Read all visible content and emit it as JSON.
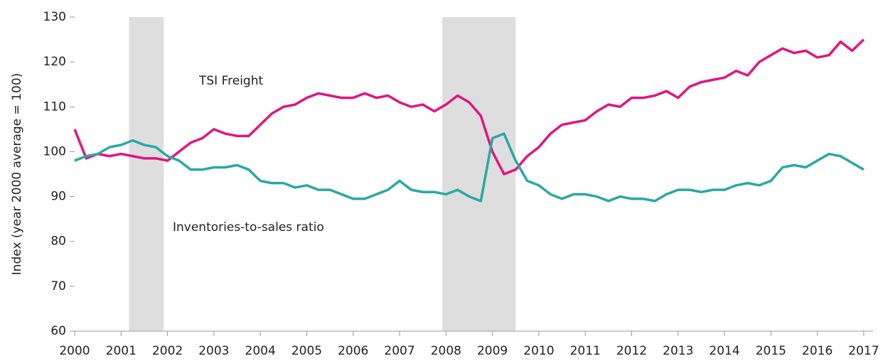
{
  "chart_data": {
    "type": "line",
    "y_label": "Index (year 2000 average = 100)",
    "x": [
      2000,
      2000.25,
      2000.5,
      2000.75,
      2001,
      2001.25,
      2001.5,
      2001.75,
      2002,
      2002.25,
      2002.5,
      2002.75,
      2003,
      2003.25,
      2003.5,
      2003.75,
      2004,
      2004.25,
      2004.5,
      2004.75,
      2005,
      2005.25,
      2005.5,
      2005.75,
      2006,
      2006.25,
      2006.5,
      2006.75,
      2007,
      2007.25,
      2007.5,
      2007.75,
      2008,
      2008.25,
      2008.5,
      2008.75,
      2009,
      2009.25,
      2009.5,
      2009.75,
      2010,
      2010.25,
      2010.5,
      2010.75,
      2011,
      2011.25,
      2011.5,
      2011.75,
      2012,
      2012.25,
      2012.5,
      2012.75,
      2013,
      2013.25,
      2013.5,
      2013.75,
      2014,
      2014.25,
      2014.5,
      2014.75,
      2015,
      2015.25,
      2015.5,
      2015.75,
      2016,
      2016.25,
      2016.5,
      2016.75,
      2017
    ],
    "series": [
      {
        "name": "TSI Freight",
        "color": "#e0157f",
        "values": [
          105,
          98.5,
          99.5,
          99,
          99.5,
          99,
          98.5,
          98.5,
          98,
          100,
          102,
          103,
          105,
          104,
          103.5,
          103.5,
          106,
          108.5,
          110,
          110.5,
          112,
          113,
          112.5,
          112,
          112,
          113,
          112,
          112.5,
          111,
          110,
          110.5,
          109,
          110.5,
          112.5,
          111,
          108,
          100,
          95,
          96,
          99,
          101,
          104,
          106,
          106.5,
          107,
          109,
          110.5,
          110,
          112,
          112,
          112.5,
          113.5,
          112,
          114.5,
          115.5,
          116,
          116.5,
          118,
          117,
          120,
          121.5,
          123,
          122,
          122.5,
          121,
          121.5,
          124.5,
          122.5,
          125
        ]
      },
      {
        "name": "Inventories-to-sales ratio",
        "color": "#2aa8a3",
        "values": [
          98,
          99,
          99.5,
          101,
          101.5,
          102.5,
          101.5,
          101,
          99,
          98,
          96,
          96,
          96.5,
          96.5,
          97,
          96,
          93.5,
          93,
          93,
          92,
          92.5,
          91.5,
          91.5,
          90.5,
          89.5,
          89.5,
          90.5,
          91.5,
          93.5,
          91.5,
          91,
          91,
          90.5,
          91.5,
          90,
          89,
          103,
          104,
          98,
          93.5,
          92.5,
          90.5,
          89.5,
          90.5,
          90.5,
          90,
          89,
          90,
          89.5,
          89.5,
          89,
          90.5,
          91.5,
          91.5,
          91,
          91.5,
          91.5,
          92.5,
          93,
          92.5,
          93.5,
          96.5,
          97,
          96.5,
          98,
          99.5,
          99,
          97.5,
          96
        ]
      }
    ],
    "shaded_ranges": [
      [
        2001.17,
        2001.92
      ],
      [
        2007.92,
        2009.5
      ]
    ],
    "shade_color": "#dedede",
    "xlim": [
      2000,
      2017.2
    ],
    "xticks": [
      2000,
      2001,
      2002,
      2003,
      2004,
      2005,
      2006,
      2007,
      2008,
      2009,
      2010,
      2011,
      2012,
      2013,
      2014,
      2015,
      2016,
      2017
    ],
    "ylim": [
      60,
      130
    ],
    "yticks": [
      60,
      70,
      80,
      90,
      100,
      110,
      120,
      130
    ],
    "grid": false
  }
}
